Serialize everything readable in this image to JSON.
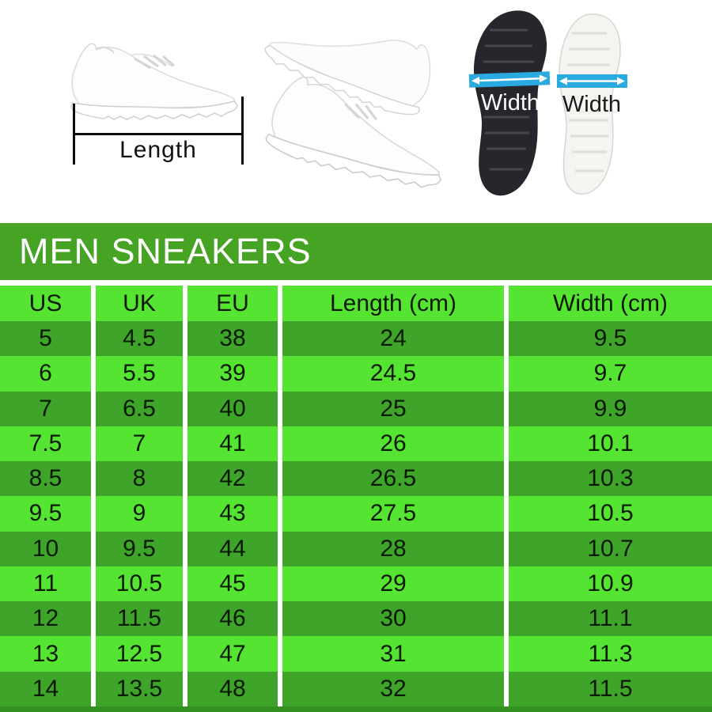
{
  "size_chart": {
    "title": "MEN SNEAKERS"
  },
  "diagram": {
    "length_label": "Length",
    "width_label_left": "Width",
    "width_label_right": "Width"
  },
  "chart_data": {
    "type": "table",
    "title": "MEN SNEAKERS",
    "columns": [
      "US",
      "UK",
      "EU",
      "Length (cm)",
      "Width (cm)"
    ],
    "rows": [
      [
        5,
        4.5,
        38,
        24,
        9.5
      ],
      [
        6,
        5.5,
        39,
        24.5,
        9.7
      ],
      [
        7,
        6.5,
        40,
        25,
        9.9
      ],
      [
        7.5,
        7,
        41,
        26,
        10.1
      ],
      [
        8.5,
        8,
        42,
        26.5,
        10.3
      ],
      [
        9.5,
        9,
        43,
        27.5,
        10.5
      ],
      [
        10,
        9.5,
        44,
        28,
        10.7
      ],
      [
        11,
        10.5,
        45,
        29,
        10.9
      ],
      [
        12,
        11.5,
        46,
        30,
        11.1
      ],
      [
        13,
        12.5,
        47,
        31,
        11.3
      ],
      [
        14,
        13.5,
        48,
        32,
        11.5
      ]
    ],
    "row_style": "alternating dark/light green starting dark",
    "legend_position": "none",
    "grid": "white column separators only"
  },
  "colors": {
    "title_bar_bg": "#46a324",
    "header_row_bg": "#56e432",
    "row_light_bg": "#56e432",
    "row_dark_bg": "#3fa42a",
    "bottom_strip_bg": "#349120",
    "grid_line": "#ffffff",
    "width_arrow_band": "#2baae2",
    "title_text": "#ffffff",
    "table_text": "#071a00",
    "sole_black": "#26262c",
    "sole_white": "#f4f4f1"
  }
}
